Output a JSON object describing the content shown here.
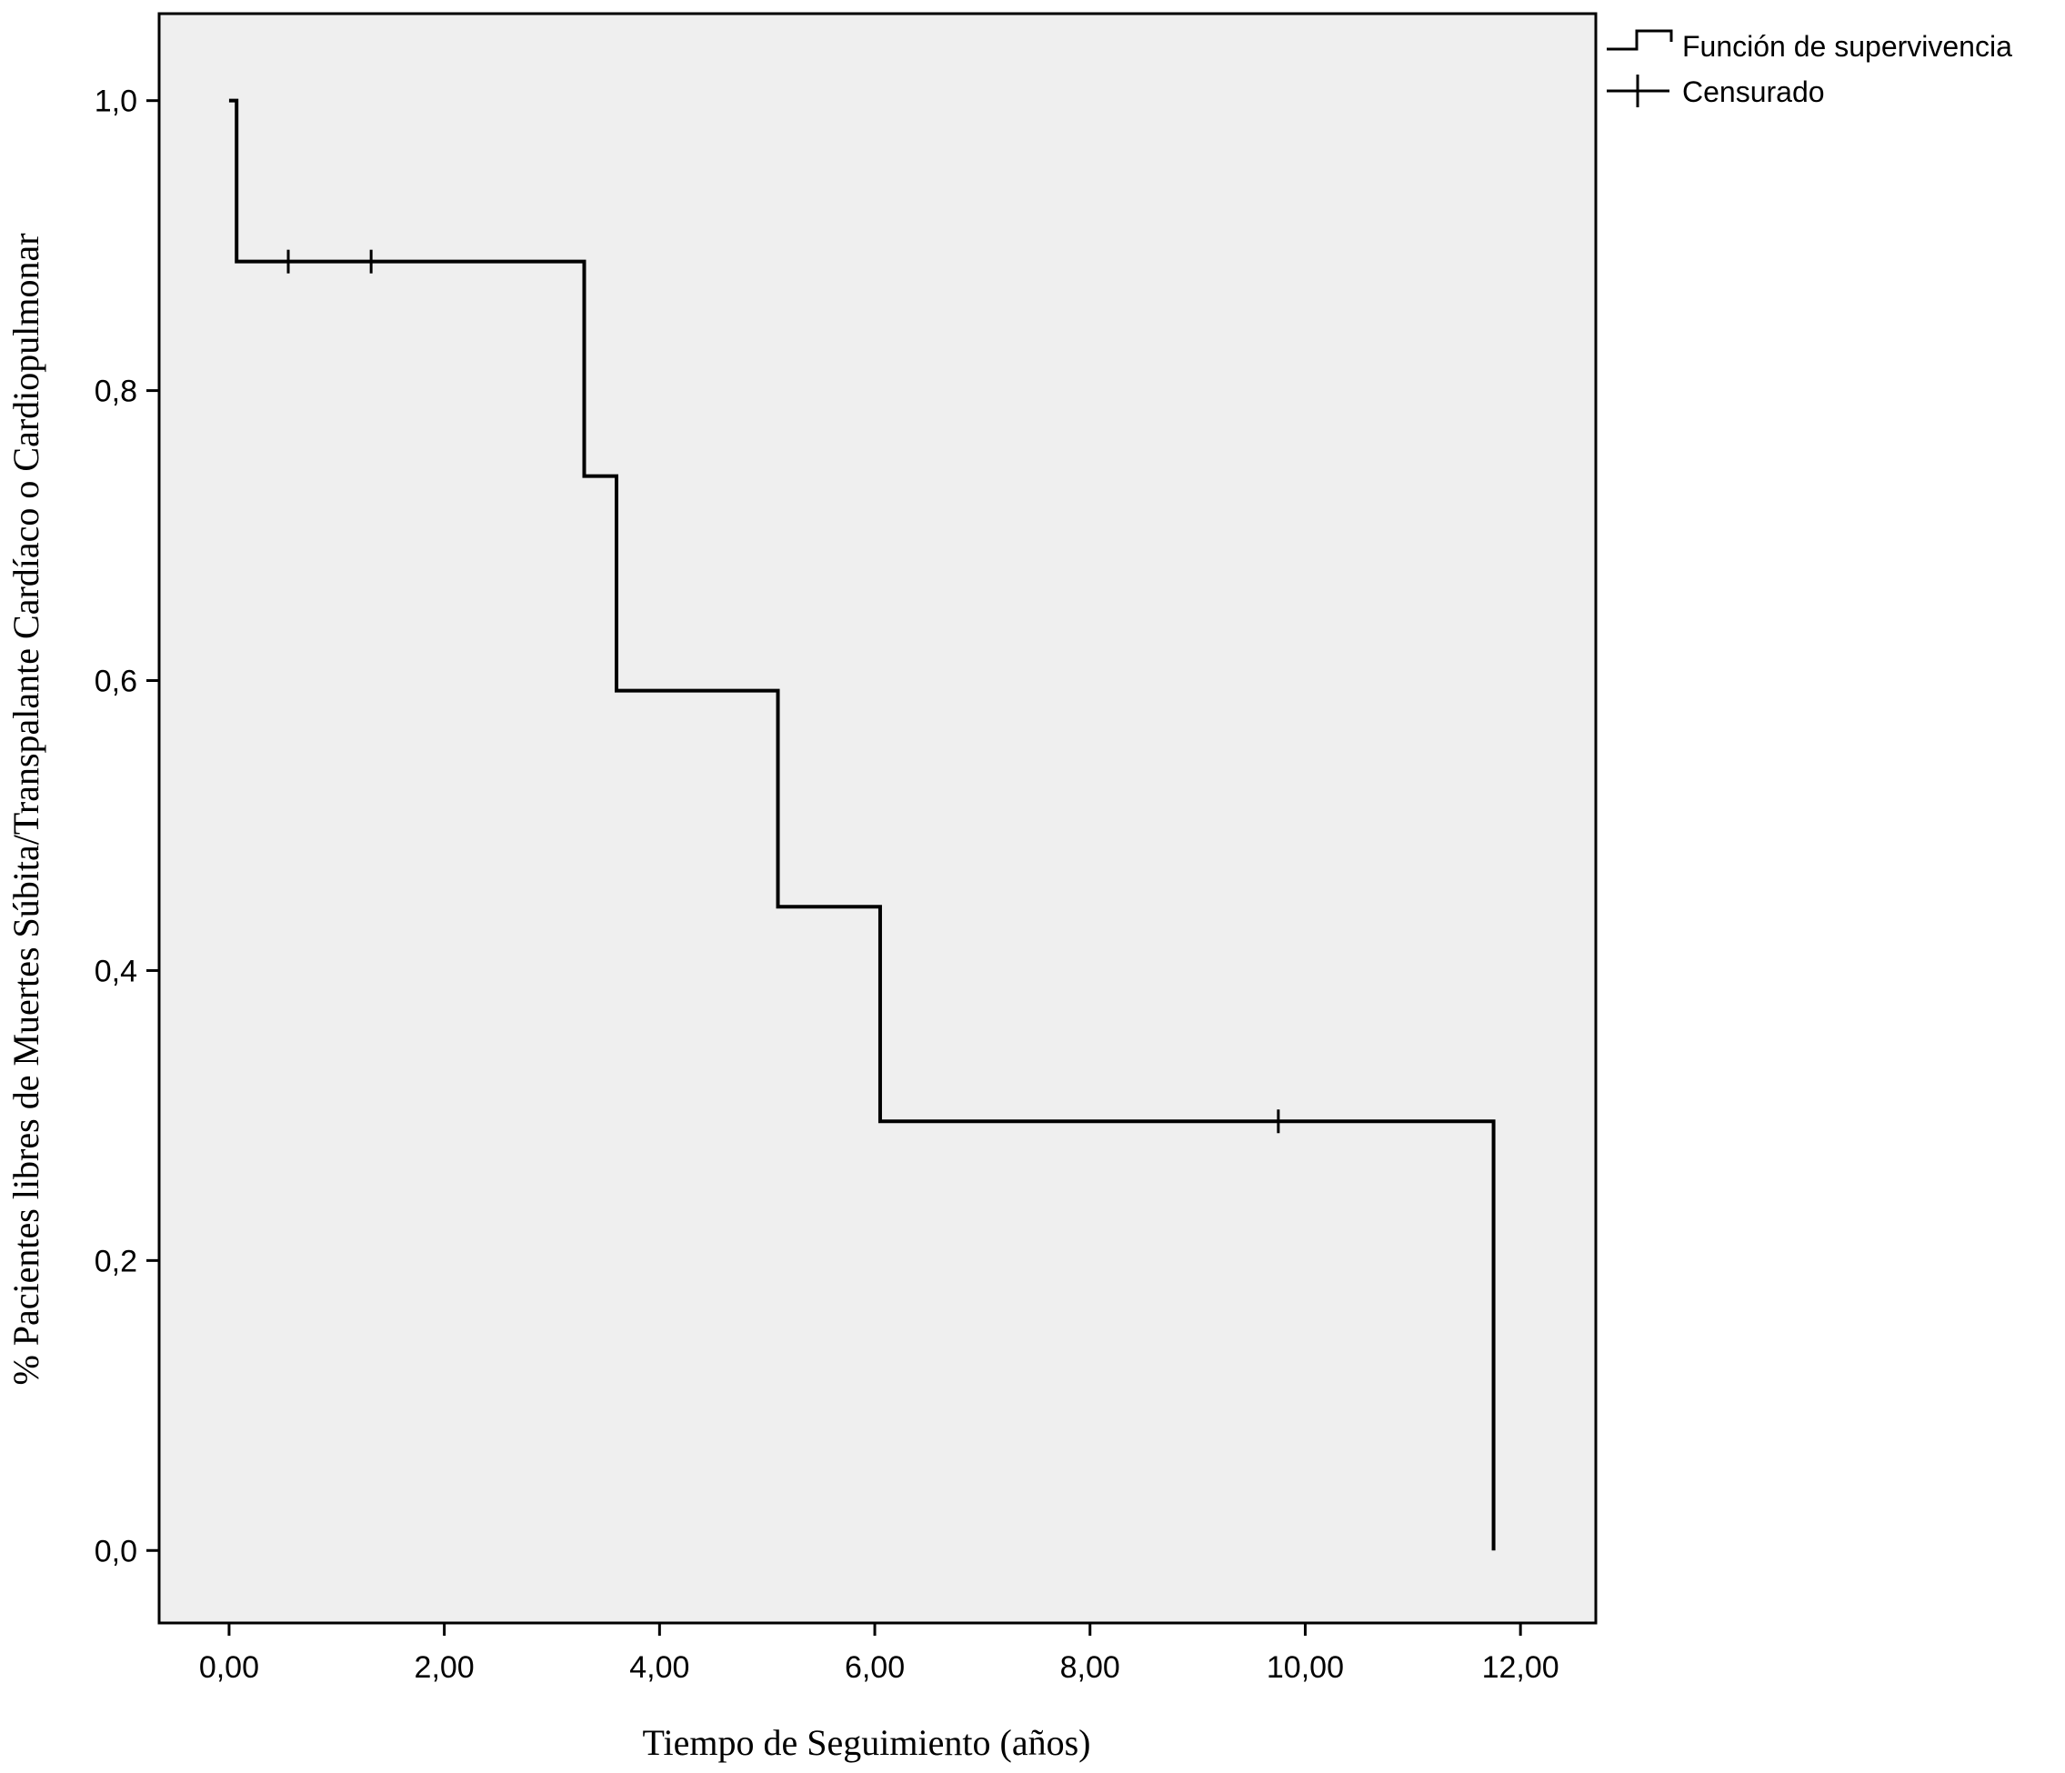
{
  "chart_data": {
    "type": "line",
    "subtype": "kaplan-meier-step",
    "xlabel": "Tiempo de Seguimiento (años)",
    "ylabel": "% Pacientes libres de Muertes Súbita/Transpalante Cardíaco o Cardiopulmonar",
    "xlim": [
      -0.65,
      12.7
    ],
    "ylim": [
      -0.05,
      1.06
    ],
    "x_ticks": [
      0,
      2,
      4,
      6,
      8,
      10,
      12
    ],
    "x_tick_labels": [
      "0,00",
      "2,00",
      "4,00",
      "6,00",
      "8,00",
      "10,00",
      "12,00"
    ],
    "y_ticks": [
      0,
      0.2,
      0.4,
      0.6,
      0.8,
      1.0
    ],
    "y_tick_labels": [
      "0,0",
      "0,2",
      "0,4",
      "0,6",
      "0,8",
      "1,0"
    ],
    "grid": false,
    "legend_position": "outside-top-right",
    "legend": [
      {
        "label": "Función de supervivencia",
        "symbol": "step"
      },
      {
        "label": "Censurado",
        "symbol": "plus"
      }
    ],
    "series": [
      {
        "name": "Función de supervivencia",
        "x": [
          0,
          0.07,
          3.3,
          3.6,
          5.1,
          6.05,
          11.75
        ],
        "y": [
          1.0,
          0.889,
          0.741,
          0.593,
          0.444,
          0.296,
          0.0
        ]
      },
      {
        "name": "Censurado",
        "x": [
          0.55,
          1.32,
          9.75
        ],
        "y": [
          0.889,
          0.889,
          0.296
        ]
      }
    ],
    "colors": {
      "plot_background": "#efefef",
      "page_background": "#ffffff",
      "line": "#000000"
    }
  }
}
